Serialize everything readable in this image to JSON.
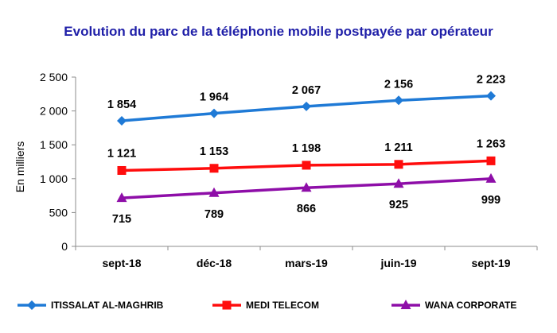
{
  "colors": {
    "title": "#1f1fa8",
    "series": [
      "#1f7ad6",
      "#ff0d0d",
      "#8e0ea8"
    ],
    "axis": "#8c8c8c"
  },
  "chart_data": {
    "type": "line",
    "title": "Evolution du parc de la téléphonie mobile postpayée par opérateur",
    "xlabel": "",
    "ylabel": "En milliers",
    "ylim": [
      0,
      2500
    ],
    "yticks": [
      0,
      500,
      1000,
      1500,
      2000,
      2500
    ],
    "ytick_labels": [
      "0",
      "500",
      "1 000",
      "1 500",
      "2 000",
      "2 500"
    ],
    "categories": [
      "sept-18",
      "déc-18",
      "mars-19",
      "juin-19",
      "sept-19"
    ],
    "grid": false,
    "legend_position": "bottom",
    "series": [
      {
        "name": "ITISSALAT AL-MAGHRIB",
        "marker": "diamond",
        "values": [
          1854,
          1964,
          2067,
          2156,
          2223
        ],
        "labels": [
          "1 854",
          "1 964",
          "2 067",
          "2 156",
          "2 223"
        ]
      },
      {
        "name": "MEDI TELECOM",
        "marker": "square",
        "values": [
          1121,
          1153,
          1198,
          1211,
          1263
        ],
        "labels": [
          "1 121",
          "1 153",
          "1 198",
          "1 211",
          "1 263"
        ]
      },
      {
        "name": "WANA CORPORATE",
        "marker": "triangle",
        "values": [
          715,
          789,
          866,
          925,
          999
        ],
        "labels": [
          "715",
          "789",
          "866",
          "925",
          "999"
        ]
      }
    ]
  }
}
